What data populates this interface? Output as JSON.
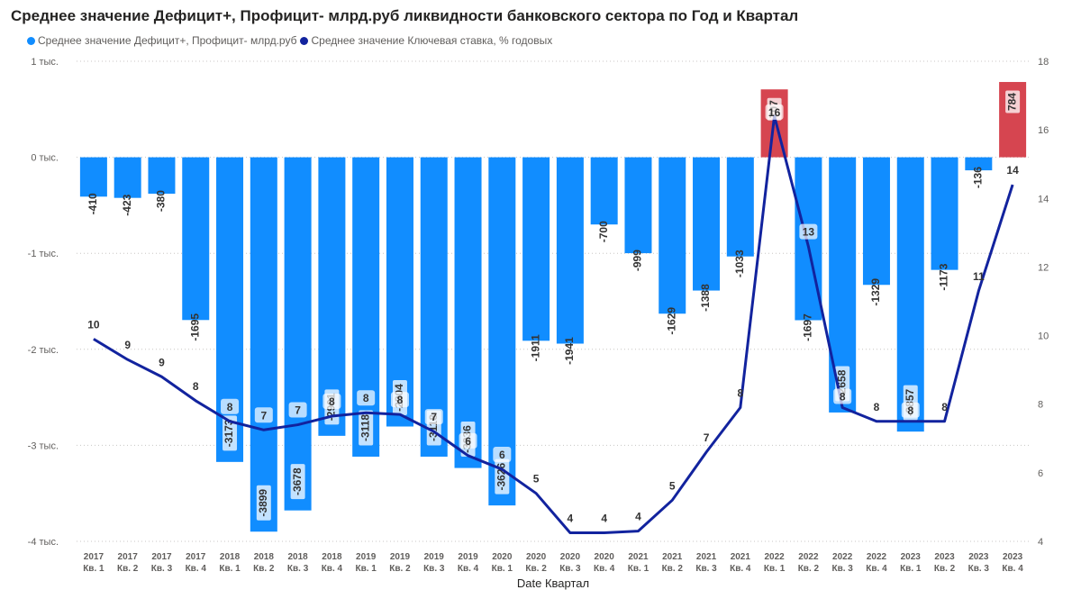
{
  "chart_data": {
    "type": "bar+line",
    "title": "Среднее значение Дефицит+, Профицит- млрд.руб ликвидности банковского сектора по Год и Квартал",
    "xlabel": "Date Квартал",
    "legend": [
      {
        "name": "Среднее значение Дефицит+, Профицит- млрд.руб",
        "color": "#118DFF"
      },
      {
        "name": "Среднее значение Ключевая ставка, % годовых",
        "color": "#12239E"
      }
    ],
    "years": [
      "2017",
      "2017",
      "2017",
      "2017",
      "2018",
      "2018",
      "2018",
      "2018",
      "2019",
      "2019",
      "2019",
      "2019",
      "2020",
      "2020",
      "2020",
      "2020",
      "2021",
      "2021",
      "2021",
      "2021",
      "2022",
      "2022",
      "2022",
      "2022",
      "2023",
      "2023",
      "2023",
      "2023"
    ],
    "quarters": [
      "Кв. 1",
      "Кв. 2",
      "Кв. 3",
      "Кв. 4",
      "Кв. 1",
      "Кв. 2",
      "Кв. 3",
      "Кв. 4",
      "Кв. 1",
      "Кв. 2",
      "Кв. 3",
      "Кв. 4",
      "Кв. 1",
      "Кв. 2",
      "Кв. 3",
      "Кв. 4",
      "Кв. 1",
      "Кв. 2",
      "Кв. 3",
      "Кв. 4",
      "Кв. 1",
      "Кв. 2",
      "Кв. 3",
      "Кв. 4",
      "Кв. 1",
      "Кв. 2",
      "Кв. 3",
      "Кв. 4"
    ],
    "bar_values": [
      -410,
      -423,
      -380,
      -1695,
      -3173,
      -3899,
      -3678,
      -2901,
      -3118,
      -2804,
      -3118,
      -3236,
      -3626,
      -1911,
      -1941,
      -700,
      -999,
      -1629,
      -1388,
      -1033,
      707,
      -1697,
      -2658,
      -1329,
      -2857,
      -1173,
      -136,
      784
    ],
    "line_values": [
      9.9,
      9.3,
      8.8,
      8.1,
      7.5,
      7.25,
      7.4,
      7.65,
      7.75,
      7.7,
      7.2,
      6.5,
      6.1,
      5.4,
      4.25,
      4.25,
      4.3,
      5.2,
      6.6,
      7.9,
      16.4,
      12.6,
      7.9,
      7.5,
      7.5,
      7.5,
      11.3,
      14.4
    ],
    "line_labels": [
      "10",
      "9",
      "9",
      "8",
      "8",
      "7",
      "7",
      "8",
      "8",
      "8",
      "7",
      "6",
      "6",
      "5",
      "4",
      "4",
      "4",
      "5",
      "7",
      "8",
      "16",
      "13",
      "8",
      "8",
      "8",
      "8",
      "11",
      "14"
    ],
    "bar_colors": {
      "negative": "#118DFF",
      "positive": "#D64550"
    },
    "line_color": "#12239E",
    "y_left": {
      "min": -4000,
      "max": 1000,
      "ticks": [
        1000,
        0,
        -1000,
        -2000,
        -3000,
        -4000
      ],
      "tick_labels": [
        "1 тыс.",
        "0 тыс.",
        "-1 тыс.",
        "-2 тыс.",
        "-3 тыс.",
        "-4 тыс."
      ]
    },
    "y_right": {
      "min": 4,
      "max": 18,
      "ticks": [
        18,
        16,
        14,
        12,
        10,
        8,
        6,
        4
      ]
    },
    "grid": true
  }
}
